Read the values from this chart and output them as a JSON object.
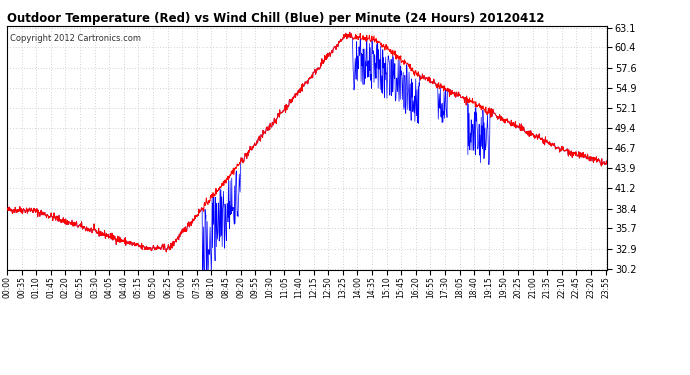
{
  "title": "Outdoor Temperature (Red) vs Wind Chill (Blue) per Minute (24 Hours) 20120412",
  "copyright": "Copyright 2012 Cartronics.com",
  "yticks": [
    30.2,
    32.9,
    35.7,
    38.4,
    41.2,
    43.9,
    46.7,
    49.4,
    52.1,
    54.9,
    57.6,
    60.4,
    63.1
  ],
  "ymin": 30.2,
  "ymax": 63.1,
  "xtick_interval_minutes": 35,
  "bg_color": "#ffffff",
  "grid_color": "#aaaaaa",
  "line_color_temp": "#ff0000",
  "line_color_chill": "#0000ff"
}
